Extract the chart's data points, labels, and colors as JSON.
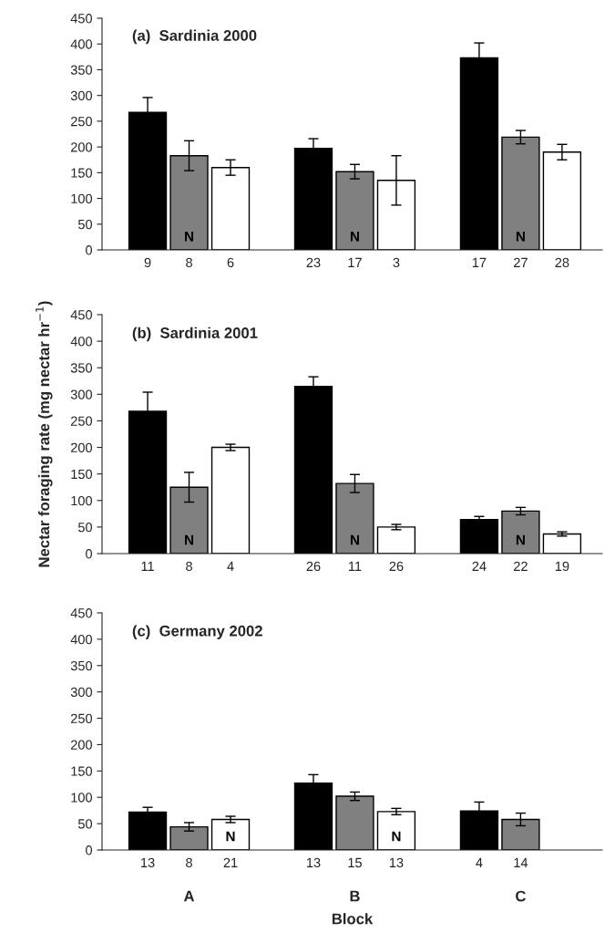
{
  "chart_data": [
    {
      "type": "bar",
      "title": "(a)  Sardinia 2000",
      "categories": [
        "9",
        "8",
        "6",
        null,
        "23",
        "17",
        "3",
        null,
        "17",
        "27",
        "28"
      ],
      "values": [
        267,
        183,
        160,
        null,
        197,
        152,
        135,
        null,
        373,
        219,
        190
      ],
      "errors": [
        29,
        29,
        15,
        null,
        19,
        14,
        48,
        null,
        29,
        13,
        15
      ],
      "colors": [
        "#000000",
        "#808080",
        "#ffffff",
        null,
        "#000000",
        "#808080",
        "#ffffff",
        null,
        "#000000",
        "#808080",
        "#ffffff"
      ],
      "value_labels": [
        null,
        "N",
        null,
        null,
        null,
        "N",
        null,
        null,
        null,
        "N",
        null
      ],
      "ylim": [
        0,
        450
      ],
      "yticks": [
        0,
        50,
        100,
        150,
        200,
        250,
        300,
        350,
        400,
        450
      ],
      "grid": false
    },
    {
      "type": "bar",
      "title": "(b)  Sardinia 2001",
      "ylabel": "Nectar foraging rate (mg nectar hr$^{−1}$)",
      "categories": [
        "11",
        "8",
        "4",
        null,
        "26",
        "11",
        "26",
        null,
        "24",
        "22",
        "19"
      ],
      "values": [
        268,
        125,
        200,
        null,
        315,
        132,
        50,
        null,
        64,
        80,
        37
      ],
      "errors": [
        36,
        28,
        6,
        null,
        18,
        17,
        5,
        null,
        6,
        7,
        4
      ],
      "colors": [
        "#000000",
        "#808080",
        "#ffffff",
        null,
        "#000000",
        "#808080",
        "#ffffff",
        null,
        "#000000",
        "#808080",
        "#ffffff"
      ],
      "value_labels": [
        null,
        "N",
        null,
        null,
        null,
        "N",
        null,
        null,
        null,
        "N",
        null
      ],
      "ylim": [
        0,
        450
      ],
      "yticks": [
        0,
        50,
        100,
        150,
        200,
        250,
        300,
        350,
        400,
        450
      ],
      "grid": false
    },
    {
      "type": "bar",
      "title": "(c)  Germany 2002",
      "xlabel": "Block",
      "annotations": [
        "A",
        "B",
        "C"
      ],
      "categories": [
        "13",
        "8",
        "21",
        null,
        "13",
        "15",
        "13",
        null,
        "4",
        "14",
        null
      ],
      "values": [
        72,
        44,
        58,
        null,
        127,
        102,
        73,
        null,
        74,
        58,
        null
      ],
      "errors": [
        9,
        8,
        6,
        null,
        16,
        8,
        6,
        null,
        17,
        12,
        null
      ],
      "colors": [
        "#000000",
        "#808080",
        "#ffffff",
        null,
        "#000000",
        "#808080",
        "#ffffff",
        null,
        "#000000",
        "#808080",
        null
      ],
      "value_labels": [
        null,
        null,
        "N",
        null,
        null,
        null,
        "N",
        null,
        null,
        null,
        null
      ],
      "ylim": [
        0,
        450
      ],
      "yticks": [
        0,
        50,
        100,
        150,
        200,
        250,
        300,
        350,
        400,
        450
      ],
      "grid": false
    }
  ]
}
